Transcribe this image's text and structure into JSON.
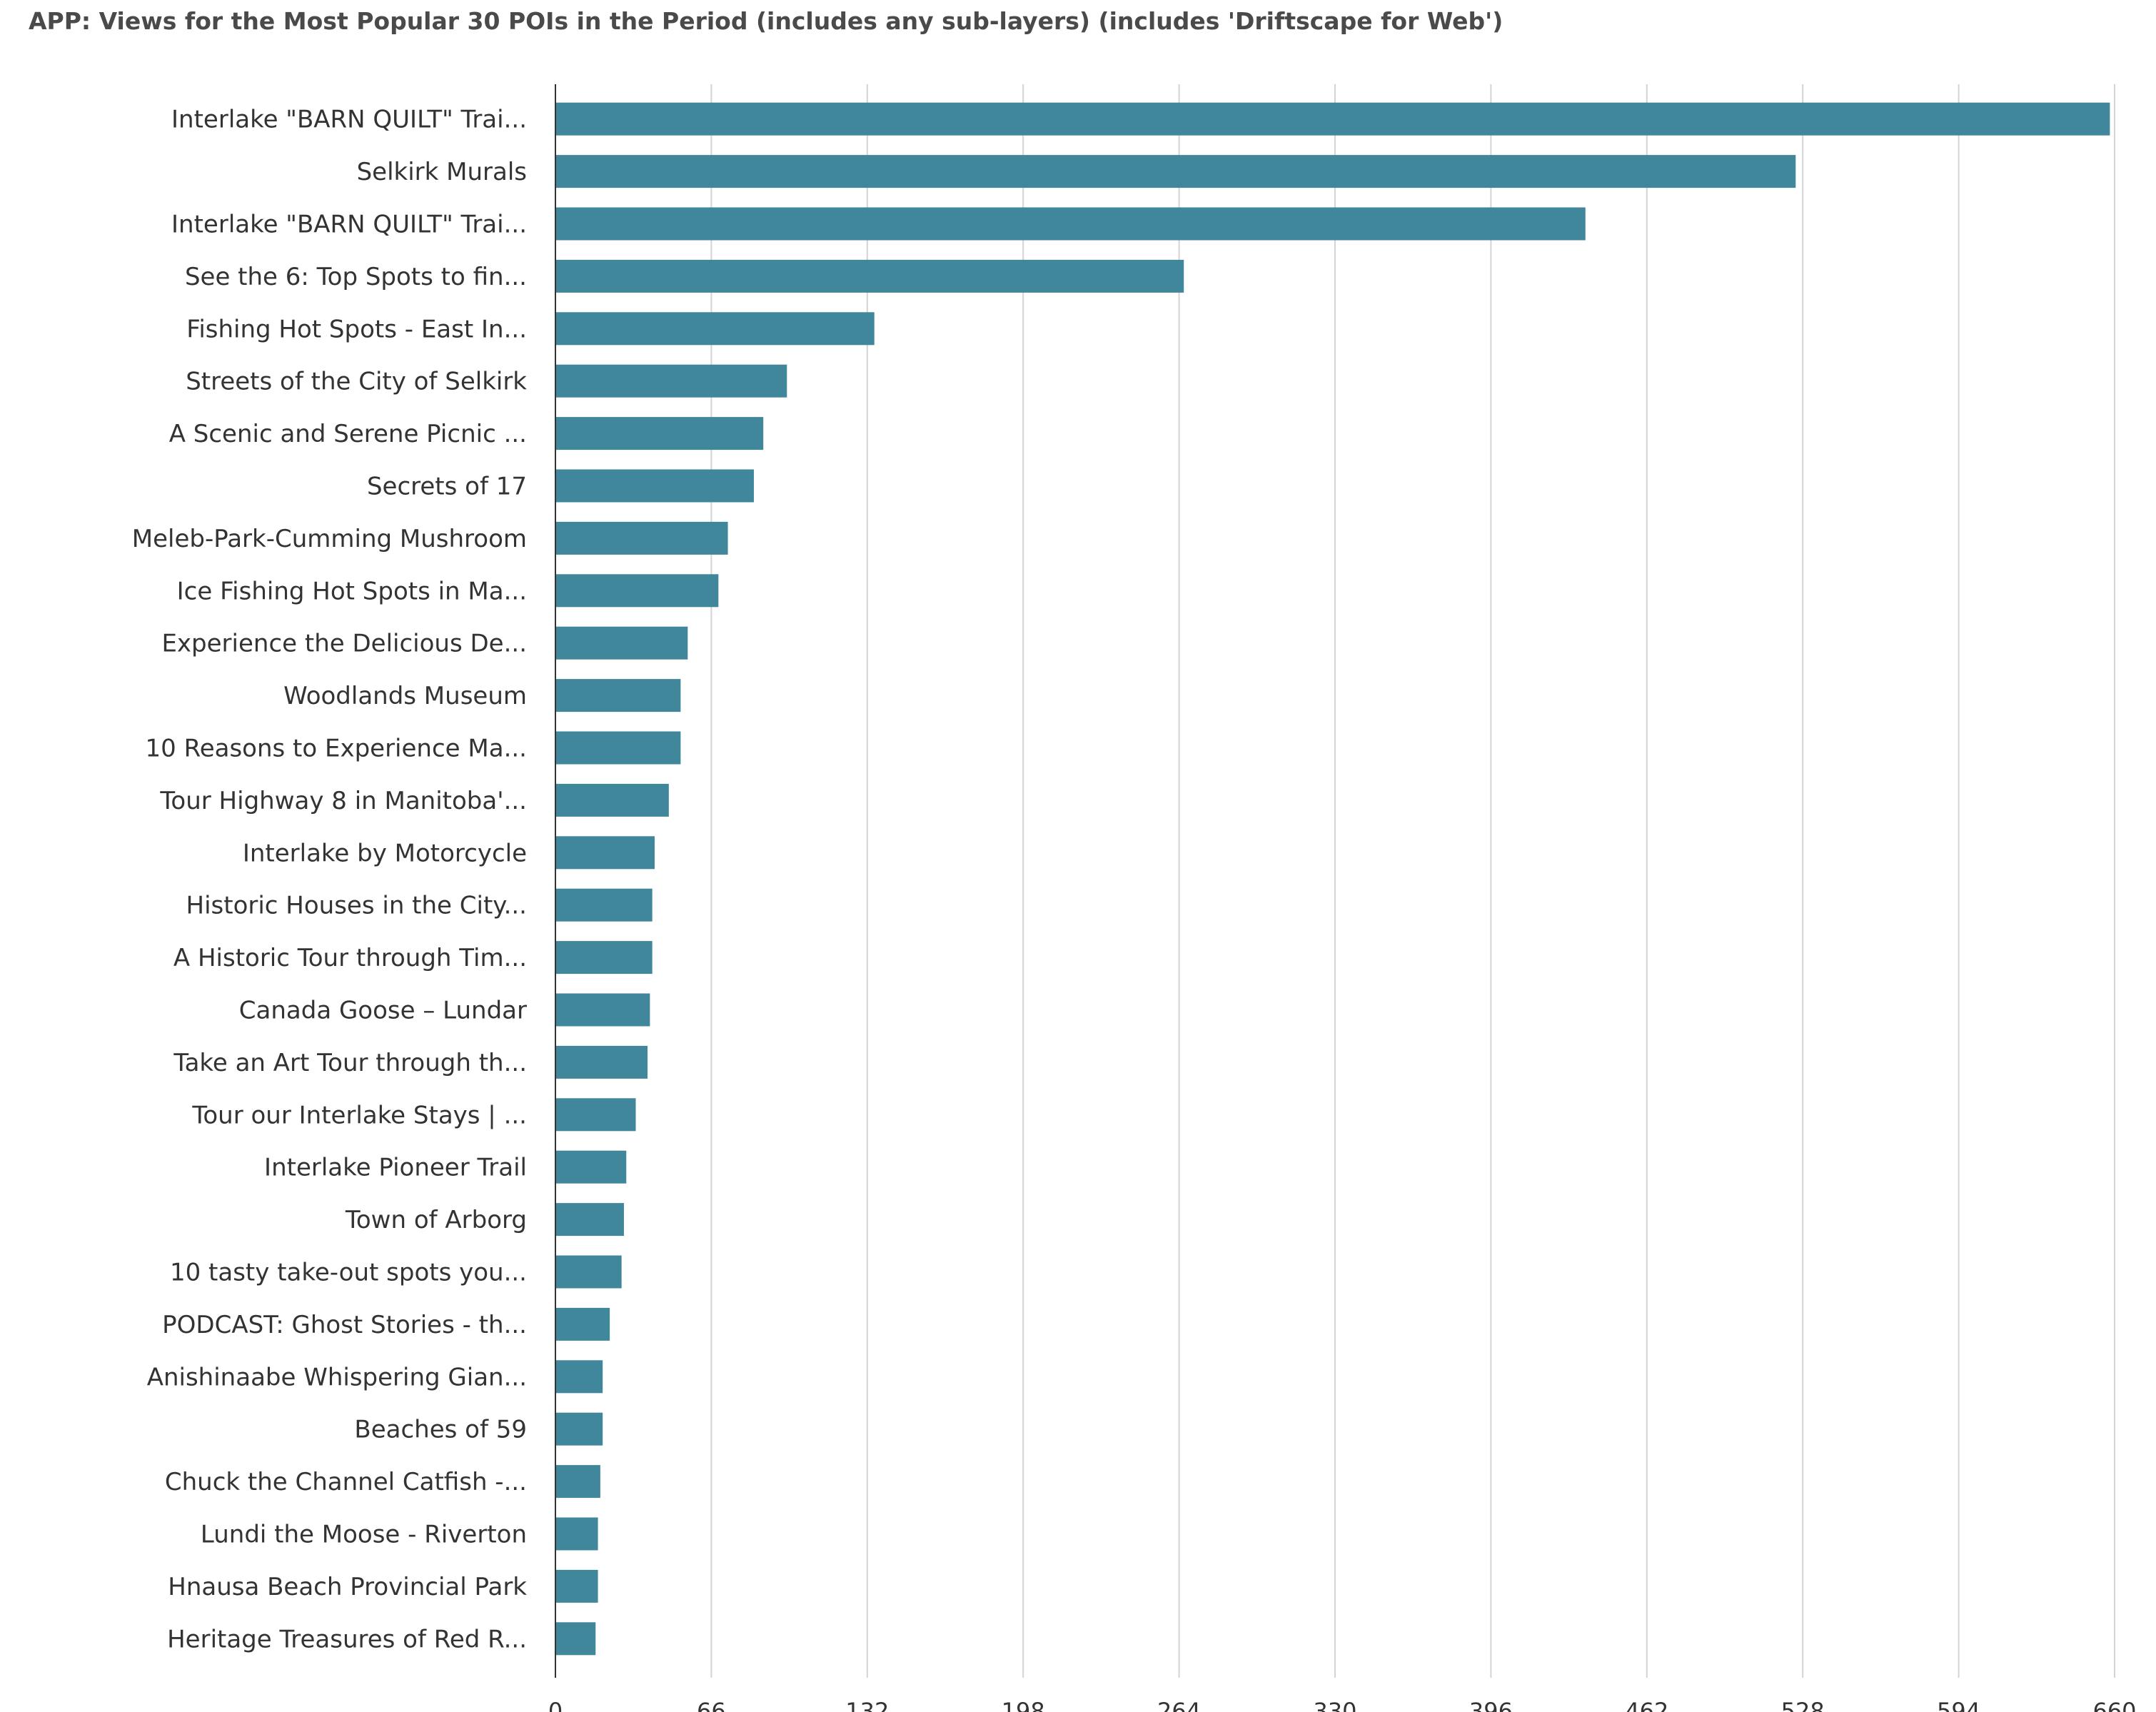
{
  "chart_data": {
    "type": "bar",
    "orientation": "horizontal",
    "title": "APP: Views for the Most Popular 30 POIs in the Period (includes any sub-layers) (includes 'Driftscape for Web')",
    "xlabel": "",
    "ylabel": "",
    "xlim": [
      0,
      660
    ],
    "xticks": [
      0,
      66,
      132,
      198,
      264,
      330,
      396,
      462,
      528,
      594,
      660
    ],
    "grid": true,
    "legend": "none",
    "color": "#41879b",
    "categories": [
      "Interlake \"BARN QUILT\" Trai...",
      "Selkirk Murals",
      "Interlake \"BARN QUILT\" Trai...",
      "See the 6: Top Spots to fin...",
      "Fishing Hot Spots - East In...",
      "Streets of the City of Selkirk",
      "A Scenic and Serene Picnic ...",
      "Secrets of 17",
      "Meleb-Park-Cumming Mushroom",
      "Ice Fishing Hot Spots in Ma...",
      "Experience the Delicious De...",
      "Woodlands Museum",
      "10 Reasons to Experience Ma...",
      "Tour Highway 8 in Manitoba'...",
      "Interlake by Motorcycle",
      "Historic Houses in the City...",
      "A Historic Tour through Tim...",
      "Canada Goose – Lundar",
      "Take an Art Tour through th...",
      "Tour our Interlake Stays | ...",
      "Interlake Pioneer Trail",
      "Town of Arborg",
      "10 tasty take-out spots you...",
      "PODCAST: Ghost Stories - th...",
      "Anishinaabe Whispering Gian...",
      "Beaches of 59",
      "Chuck the Channel Catfish -...",
      "Lundi the Moose - Riverton",
      "Hnausa Beach Provincial Park",
      "Heritage Treasures of Red R..."
    ],
    "values": [
      658,
      525,
      436,
      266,
      135,
      98,
      88,
      84,
      73,
      69,
      56,
      53,
      53,
      48,
      42,
      41,
      41,
      40,
      39,
      34,
      30,
      29,
      28,
      23,
      20,
      20,
      19,
      18,
      18,
      17
    ]
  }
}
